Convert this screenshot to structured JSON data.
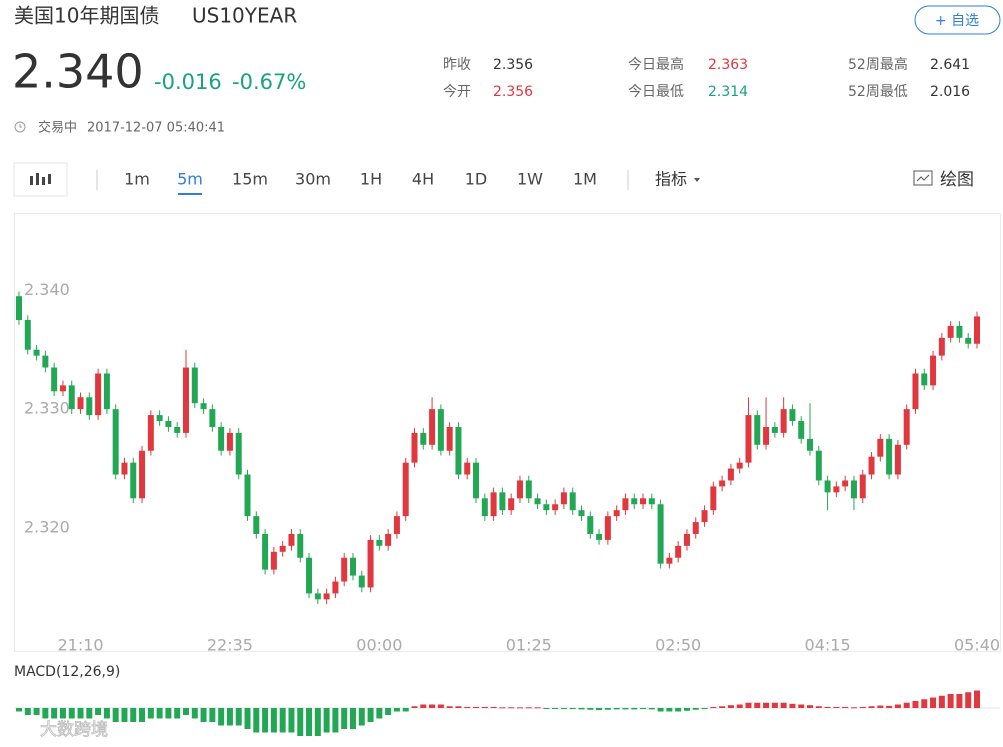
{
  "header": {
    "title": "美国10年期国债",
    "symbol": "US10YEAR",
    "watchlist_button": "+ 自选"
  },
  "quote": {
    "price": "2.340",
    "change": "-0.016",
    "change_pct": "-0.67%",
    "change_color": "#19a184",
    "stats": [
      {
        "label": "昨收",
        "value": "2.356",
        "color": "#333333"
      },
      {
        "label": "今日最高",
        "value": "2.363",
        "color": "#e0383e"
      },
      {
        "label": "52周最高",
        "value": "2.641",
        "color": "#333333"
      },
      {
        "label": "今开",
        "value": "2.356",
        "color": "#e0383e"
      },
      {
        "label": "今日最低",
        "value": "2.314",
        "color": "#19a184"
      },
      {
        "label": "52周最低",
        "value": "2.016",
        "color": "#333333"
      }
    ],
    "status": "交易中",
    "timestamp": "2017-12-07 05:40:41"
  },
  "toolbar": {
    "intervals": [
      "1m",
      "5m",
      "15m",
      "30m",
      "1H",
      "4H",
      "1D",
      "1W",
      "1M"
    ],
    "active": 1,
    "indicators": "指标",
    "draw": "绘图"
  },
  "watermark": "大数跨境",
  "chart_data": {
    "type": "candlestick",
    "categories": [
      null,
      null,
      null,
      null,
      null,
      null,
      null,
      "21:10",
      null,
      null,
      null,
      null,
      null,
      null,
      null,
      null,
      null,
      null,
      null,
      null,
      null,
      null,
      null,
      null,
      "22:35",
      null,
      null,
      null,
      null,
      null,
      null,
      null,
      null,
      null,
      null,
      null,
      null,
      null,
      null,
      null,
      null,
      "00:00",
      null,
      null,
      null,
      null,
      null,
      null,
      null,
      null,
      null,
      null,
      null,
      null,
      null,
      null,
      null,
      null,
      "01:25",
      null,
      null,
      null,
      null,
      null,
      null,
      null,
      null,
      null,
      null,
      null,
      null,
      null,
      null,
      null,
      null,
      "02:50",
      null,
      null,
      null,
      null,
      null,
      null,
      null,
      null,
      null,
      null,
      null,
      null,
      null,
      null,
      null,
      null,
      "04:15",
      null,
      null,
      null,
      null,
      null,
      null,
      null,
      null,
      null,
      null,
      null,
      null,
      null,
      null,
      null,
      null,
      "05:40"
    ],
    "open": [
      2.3395,
      2.3375,
      2.335,
      2.3345,
      2.3335,
      2.3315,
      2.332,
      2.33,
      2.331,
      2.3295,
      2.333,
      2.33,
      2.3245,
      2.3255,
      2.3225,
      2.3265,
      2.3295,
      2.329,
      2.3285,
      2.328,
      2.3335,
      2.3305,
      2.33,
      2.3285,
      2.3265,
      2.328,
      2.3245,
      2.321,
      2.3195,
      2.3165,
      2.318,
      2.3185,
      2.3195,
      2.3175,
      2.3145,
      2.314,
      2.3145,
      2.3155,
      2.3175,
      2.316,
      2.315,
      2.319,
      2.3185,
      2.3195,
      2.321,
      2.3255,
      2.328,
      2.327,
      2.33,
      2.3265,
      2.3285,
      2.3245,
      2.3255,
      2.3225,
      2.321,
      2.323,
      2.3215,
      2.3225,
      2.324,
      2.3225,
      2.322,
      2.3215,
      2.322,
      2.323,
      2.3215,
      2.321,
      2.3195,
      2.319,
      2.321,
      2.3215,
      2.3225,
      2.322,
      2.3225,
      2.322,
      2.317,
      2.3175,
      2.3185,
      2.3195,
      2.3205,
      2.3215,
      2.3235,
      2.324,
      2.325,
      2.3255,
      2.3295,
      2.327,
      2.3285,
      2.328,
      2.33,
      2.329,
      2.3275,
      2.3265,
      2.324,
      2.323,
      2.3235,
      2.324,
      2.3225,
      2.3245,
      2.326,
      2.3275,
      2.3245,
      2.327,
      2.33,
      2.333,
      2.332,
      2.3345,
      2.336,
      2.337,
      2.336,
      2.3355
    ],
    "high": [
      2.3399,
      2.3379,
      2.3354,
      2.3349,
      2.3339,
      2.3324,
      2.3324,
      2.3314,
      2.3314,
      2.3334,
      2.3334,
      2.3304,
      2.3259,
      2.3259,
      2.3269,
      2.3299,
      2.3299,
      2.3294,
      2.3289,
      2.335,
      2.3339,
      2.3309,
      2.3304,
      2.3289,
      2.3284,
      2.3284,
      2.3249,
      2.3214,
      2.3199,
      2.3184,
      2.3189,
      2.3199,
      2.3199,
      2.3179,
      2.3149,
      2.3149,
      2.3159,
      2.3179,
      2.3179,
      2.3164,
      2.3194,
      2.3194,
      2.3199,
      2.3214,
      2.3259,
      2.3284,
      2.3284,
      2.331,
      2.3304,
      2.3289,
      2.3289,
      2.3259,
      2.3259,
      2.3229,
      2.3234,
      2.3234,
      2.3229,
      2.3244,
      2.3244,
      2.3229,
      2.3224,
      2.3224,
      2.3234,
      2.3234,
      2.3219,
      2.3214,
      2.3199,
      2.3214,
      2.3219,
      2.3229,
      2.3229,
      2.3229,
      2.3229,
      2.3224,
      2.3179,
      2.3189,
      2.3199,
      2.3209,
      2.3219,
      2.3239,
      2.3244,
      2.3254,
      2.3259,
      2.331,
      2.3299,
      2.331,
      2.3289,
      2.331,
      2.3304,
      2.3294,
      2.3305,
      2.3269,
      2.3244,
      2.3239,
      2.3244,
      2.3244,
      2.3249,
      2.3264,
      2.3279,
      2.3279,
      2.3274,
      2.3304,
      2.3334,
      2.3334,
      2.3349,
      2.3364,
      2.3374,
      2.3374,
      2.3364,
      2.3382
    ],
    "low": [
      2.3371,
      2.3346,
      2.3341,
      2.3331,
      2.3311,
      2.3311,
      2.3296,
      2.3296,
      2.3291,
      2.3291,
      2.3296,
      2.3241,
      2.3241,
      2.3221,
      2.3221,
      2.3261,
      2.3286,
      2.3281,
      2.3276,
      2.3276,
      2.3301,
      2.3296,
      2.3281,
      2.3261,
      2.3261,
      2.3241,
      2.3206,
      2.3191,
      2.3161,
      2.3161,
      2.3176,
      2.3181,
      2.3171,
      2.3141,
      2.3136,
      2.3136,
      2.3141,
      2.3151,
      2.3156,
      2.3146,
      2.3146,
      2.3181,
      2.3181,
      2.3191,
      2.3206,
      2.3251,
      2.3266,
      2.3266,
      2.3261,
      2.3261,
      2.3241,
      2.3241,
      2.3221,
      2.3206,
      2.3206,
      2.3211,
      2.3211,
      2.3221,
      2.3221,
      2.3216,
      2.3211,
      2.3211,
      2.3216,
      2.3211,
      2.3206,
      2.3191,
      2.3186,
      2.3186,
      2.3206,
      2.3211,
      2.3216,
      2.3216,
      2.3216,
      2.3166,
      2.3166,
      2.3171,
      2.3181,
      2.3191,
      2.3201,
      2.3211,
      2.3231,
      2.3236,
      2.3246,
      2.3251,
      2.3266,
      2.3266,
      2.3276,
      2.3276,
      2.3286,
      2.3271,
      2.3261,
      2.3236,
      2.3215,
      2.3226,
      2.3231,
      2.3215,
      2.3221,
      2.3241,
      2.3256,
      2.3241,
      2.3241,
      2.3266,
      2.3296,
      2.3316,
      2.3316,
      2.3341,
      2.3356,
      2.3356,
      2.3351,
      2.3351
    ],
    "close": [
      2.3375,
      2.335,
      2.3345,
      2.3335,
      2.3315,
      2.332,
      2.33,
      2.331,
      2.3295,
      2.333,
      2.33,
      2.3245,
      2.3255,
      2.3225,
      2.3265,
      2.3295,
      2.329,
      2.3285,
      2.328,
      2.3335,
      2.3305,
      2.33,
      2.3285,
      2.3265,
      2.328,
      2.3245,
      2.321,
      2.3195,
      2.3165,
      2.318,
      2.3185,
      2.3195,
      2.3175,
      2.3145,
      2.314,
      2.3145,
      2.3155,
      2.3175,
      2.316,
      2.315,
      2.319,
      2.3185,
      2.3195,
      2.321,
      2.3255,
      2.328,
      2.327,
      2.33,
      2.3265,
      2.3285,
      2.3245,
      2.3255,
      2.3225,
      2.321,
      2.323,
      2.3215,
      2.3225,
      2.324,
      2.3225,
      2.322,
      2.3215,
      2.322,
      2.323,
      2.3215,
      2.321,
      2.3195,
      2.319,
      2.321,
      2.3215,
      2.3225,
      2.322,
      2.3225,
      2.322,
      2.317,
      2.3175,
      2.3185,
      2.3195,
      2.3205,
      2.3215,
      2.3235,
      2.324,
      2.325,
      2.3255,
      2.3295,
      2.327,
      2.3285,
      2.328,
      2.33,
      2.329,
      2.3275,
      2.3265,
      2.324,
      2.323,
      2.3235,
      2.324,
      2.3225,
      2.3245,
      2.326,
      2.3275,
      2.3245,
      2.327,
      2.33,
      2.333,
      2.332,
      2.3345,
      2.336,
      2.337,
      2.336,
      2.3355,
      2.3378
    ],
    "ylim": [
      2.311,
      2.3465
    ],
    "yticks": [
      {
        "value": 2.34,
        "label": "2.340"
      },
      {
        "value": 2.33,
        "label": "2.330"
      },
      {
        "value": 2.32,
        "label": "2.320"
      }
    ],
    "grid": false,
    "up_color": "#e0383e",
    "down_color": "#22a854",
    "macd": {
      "label": "MACD(12,26,9)",
      "values": [
        -1,
        -2,
        -2,
        -3,
        -3,
        -3,
        -3,
        -3,
        -3,
        -2,
        -3,
        -4,
        -4,
        -4,
        -4,
        -3,
        -3,
        -3,
        -3,
        -2,
        -3,
        -4,
        -4,
        -5,
        -5,
        -5,
        -6,
        -7,
        -7,
        -7,
        -7,
        -7,
        -8,
        -8,
        -8,
        -7,
        -7,
        -6,
        -6,
        -5,
        -4,
        -3,
        -2,
        -1,
        -1,
        0.5,
        1,
        1,
        1,
        0.5,
        0.5,
        0.3,
        0.3,
        0.3,
        0.3,
        0.2,
        0.2,
        0.2,
        0.2,
        0.2,
        -0.2,
        -0.2,
        -0.3,
        -0.3,
        -0.4,
        -0.5,
        -0.6,
        -0.5,
        -0.4,
        -0.4,
        -0.4,
        -0.3,
        -0.4,
        -1,
        -1,
        -1,
        -0.8,
        -0.5,
        -0.3,
        0.3,
        0.5,
        0.8,
        1,
        1.5,
        1.5,
        1.5,
        1.5,
        1.5,
        1.2,
        1,
        0.8,
        0.5,
        0.3,
        0.3,
        0.3,
        0.2,
        0.3,
        0.5,
        0.7,
        0.6,
        1,
        1.5,
        2,
        2.5,
        3,
        3.5,
        4,
        4,
        4.5,
        5
      ]
    }
  }
}
